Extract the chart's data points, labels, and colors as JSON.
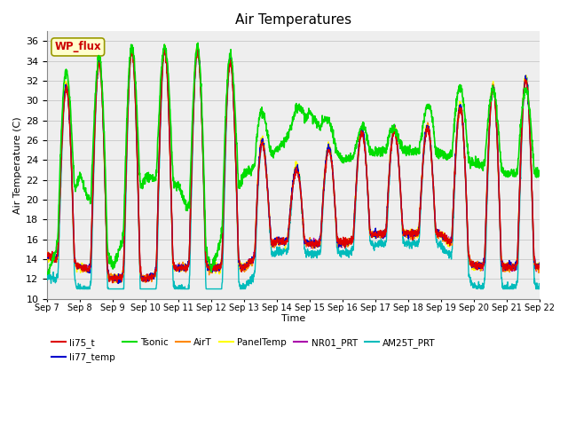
{
  "title": "Air Temperatures",
  "xlabel": "Time",
  "ylabel": "Air Temperature (C)",
  "ylim": [
    10,
    37
  ],
  "yticks": [
    10,
    12,
    14,
    16,
    18,
    20,
    22,
    24,
    26,
    28,
    30,
    32,
    34,
    36
  ],
  "num_days": 15,
  "start_day": 7,
  "series": {
    "li75_t": {
      "color": "#dd0000",
      "lw": 1.0
    },
    "li77_temp": {
      "color": "#0000cc",
      "lw": 1.0
    },
    "Tsonic": {
      "color": "#00dd00",
      "lw": 1.2
    },
    "AirT": {
      "color": "#ff8800",
      "lw": 1.0
    },
    "PanelTemp": {
      "color": "#ffff00",
      "lw": 1.0
    },
    "NR01_PRT": {
      "color": "#aa00aa",
      "lw": 1.0
    },
    "AM25T_PRT": {
      "color": "#00bbbb",
      "lw": 1.0
    }
  },
  "wp_flux_box": {
    "text": "WP_flux",
    "text_color": "#cc0000",
    "bg_color": "#ffffcc",
    "edge_color": "#999900"
  },
  "bg_color": "#eeeeee",
  "grid_color": "#cccccc",
  "legend_order": [
    "li75_t",
    "li77_temp",
    "Tsonic",
    "AirT",
    "PanelTemp",
    "NR01_PRT",
    "AM25T_PRT"
  ]
}
